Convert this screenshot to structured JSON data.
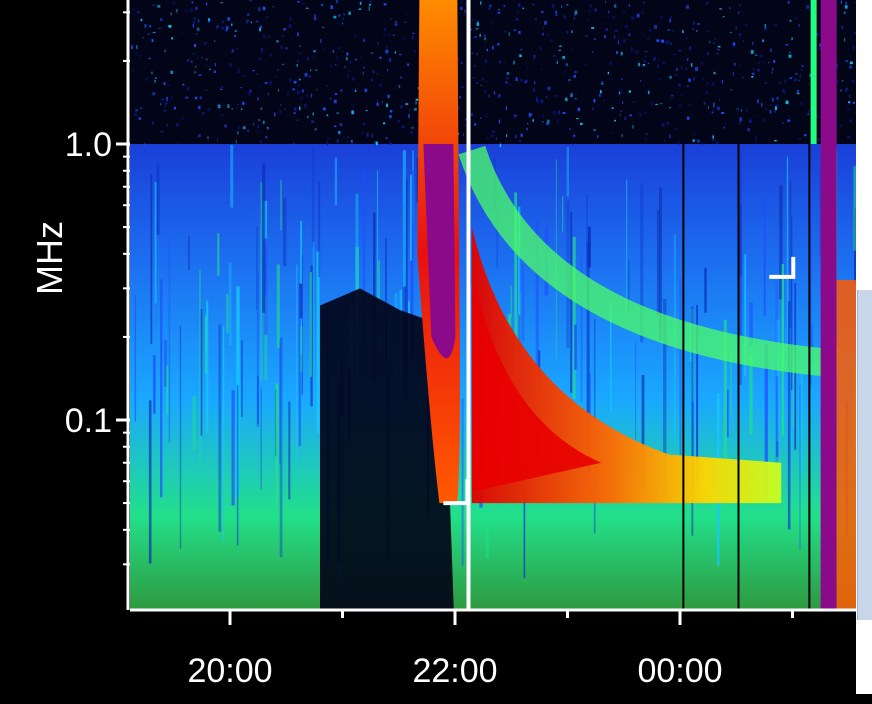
{
  "chart_data": {
    "type": "heatmap",
    "title": "",
    "xlabel": "",
    "ylabel": "MHz",
    "y_scale": "log",
    "ylim": [
      0.025,
      3.0
    ],
    "xlim_hours": [
      18.9,
      25.5
    ],
    "x_ticks": [
      {
        "label": "20:00",
        "hours": 20
      },
      {
        "label": "22:00",
        "hours": 22
      },
      {
        "label": "00:00",
        "hours": 24
      }
    ],
    "y_ticks": [
      {
        "label": "1.0",
        "value": 1.0
      },
      {
        "label": "0.1",
        "value": 0.1
      }
    ],
    "colorscale": [
      "#000010",
      "#0a1a8c",
      "#1f4fff",
      "#18c8ff",
      "#20ff80",
      "#c8ff20",
      "#ffd400",
      "#ff6a00",
      "#e00000",
      "#8a0a8a"
    ],
    "band_split_mhz": 1.0,
    "burst_features": [
      {
        "kind": "type-III-drift",
        "start_hours": 21.95,
        "low_freq_mhz": 0.05,
        "color": "#8a0a8a"
      },
      {
        "kind": "type-II-envelope",
        "start_hours": 22.15,
        "low_freq_mhz": 0.05,
        "color": "#e00000"
      },
      {
        "kind": "type-III-drift",
        "start_hours": 25.25,
        "low_freq_mhz": 0.03,
        "color": "#8a0a8a"
      }
    ],
    "markers": [
      {
        "label": "",
        "hours": 22.12,
        "kind": "vertical-line",
        "color": "#ffffff"
      },
      {
        "label": "",
        "hours": 21.95,
        "mhz": 0.05,
        "kind": "corner",
        "color": "#ffffff"
      },
      {
        "label": "",
        "hours": 24.9,
        "mhz": 0.33,
        "kind": "corner",
        "color": "#ffffff"
      }
    ],
    "grid": false,
    "legend": "none"
  }
}
